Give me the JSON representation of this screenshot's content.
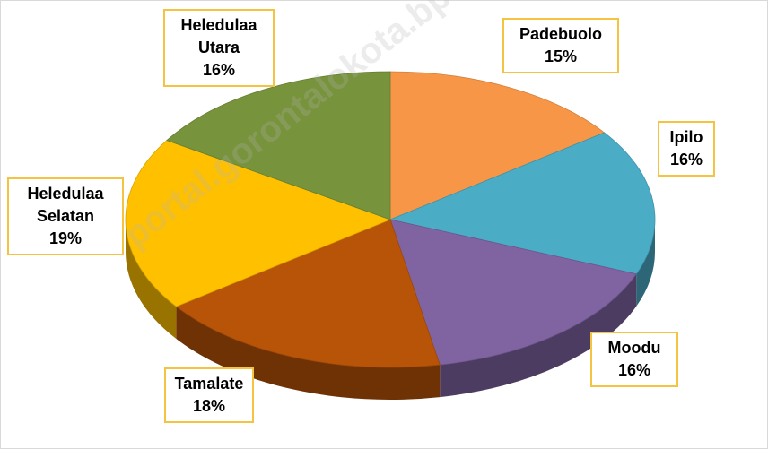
{
  "chart_data": {
    "type": "pie",
    "categories": [
      "Padebuolo",
      "Ipilo",
      "Moodu",
      "Tamalate",
      "Heledulaa Selatan",
      "Heledulaa Utara"
    ],
    "values": [
      15,
      16,
      16,
      18,
      19,
      16
    ],
    "value_labels": [
      "15%",
      "16%",
      "16%",
      "18%",
      "19%",
      "16%"
    ],
    "colors": [
      "#f79646",
      "#4bacc6",
      "#8064a2",
      "#b85408",
      "#ffc000",
      "#77933c"
    ],
    "watermark": "portal.gorontalokota.bps.go.id"
  }
}
